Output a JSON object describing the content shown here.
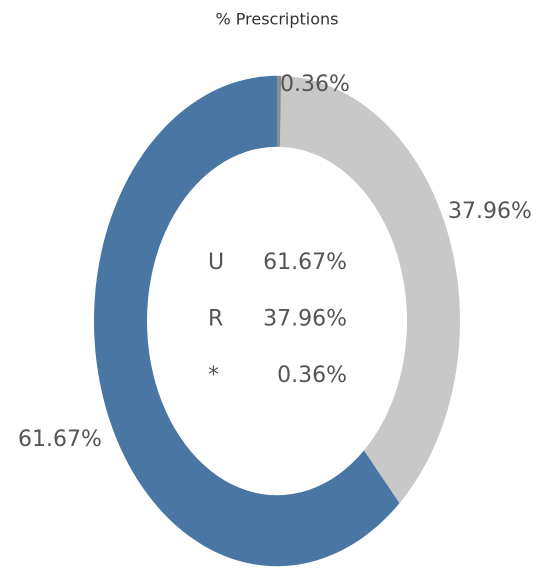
{
  "chart_data": {
    "type": "donut",
    "title": "% Prescriptions",
    "categories": [
      "U",
      "R",
      "*"
    ],
    "values": [
      61.67,
      37.96,
      0.36
    ],
    "value_labels": [
      "61.67%",
      "37.96%",
      "0.36%"
    ],
    "colors": [
      "#4a76a4",
      "#c8c8c8",
      "#8c8c8c"
    ]
  }
}
